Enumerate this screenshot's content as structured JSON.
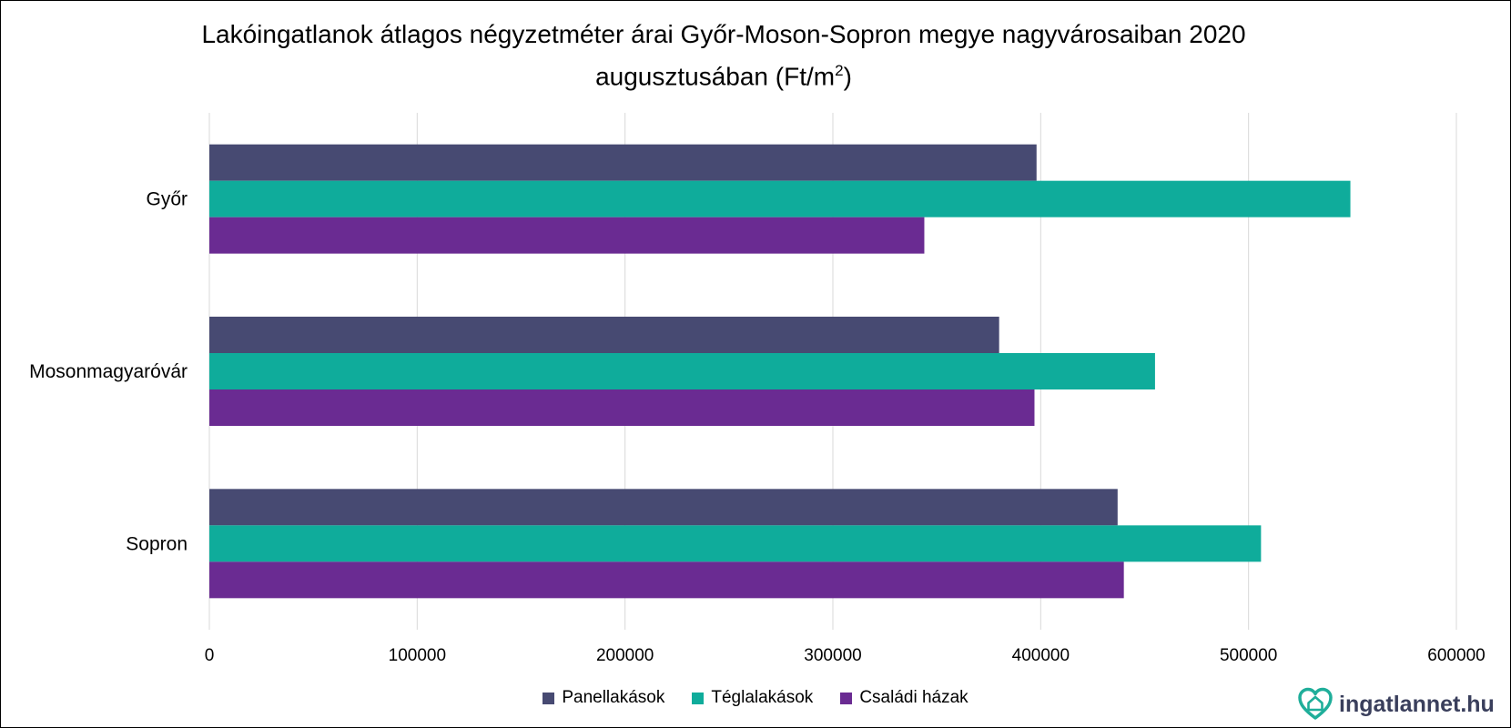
{
  "title": {
    "line1": "Lakóingatlanok átlagos négyzetméter árai Győr-Moson-Sopron megye nagyvárosaiban 2020",
    "line2": "augusztusában (Ft/m",
    "sup": "2",
    "line2_end": ")"
  },
  "colors": {
    "Panellakások": "#474a72",
    "Téglalakások": "#0fac9b",
    "Családi házak": "#6a2b92",
    "grid": "#d9d9d9"
  },
  "chart_data": {
    "type": "bar",
    "orientation": "horizontal",
    "title": "Lakóingatlanok átlagos négyzetméter árai Győr-Moson-Sopron megye nagyvárosaiban 2020 augusztusában (Ft/m2)",
    "categories": [
      "Győr",
      "Mosonmagyaróvár",
      "Sopron"
    ],
    "series": [
      {
        "name": "Panellakások",
        "values": [
          398000,
          380000,
          437000
        ]
      },
      {
        "name": "Téglalakások",
        "values": [
          549000,
          455000,
          506000
        ]
      },
      {
        "name": "Családi házak",
        "values": [
          344000,
          397000,
          440000
        ]
      }
    ],
    "xlim": [
      0,
      600000
    ],
    "xticks": [
      "0",
      "100000",
      "200000",
      "300000",
      "400000",
      "500000",
      "600000"
    ],
    "grid": true,
    "legend_position": "bottom"
  },
  "legend": [
    "Panellakások",
    "Téglalakások",
    "Családi házak"
  ],
  "logo": {
    "text": "ingatlannet.hu",
    "icon": "house-heart-icon"
  }
}
